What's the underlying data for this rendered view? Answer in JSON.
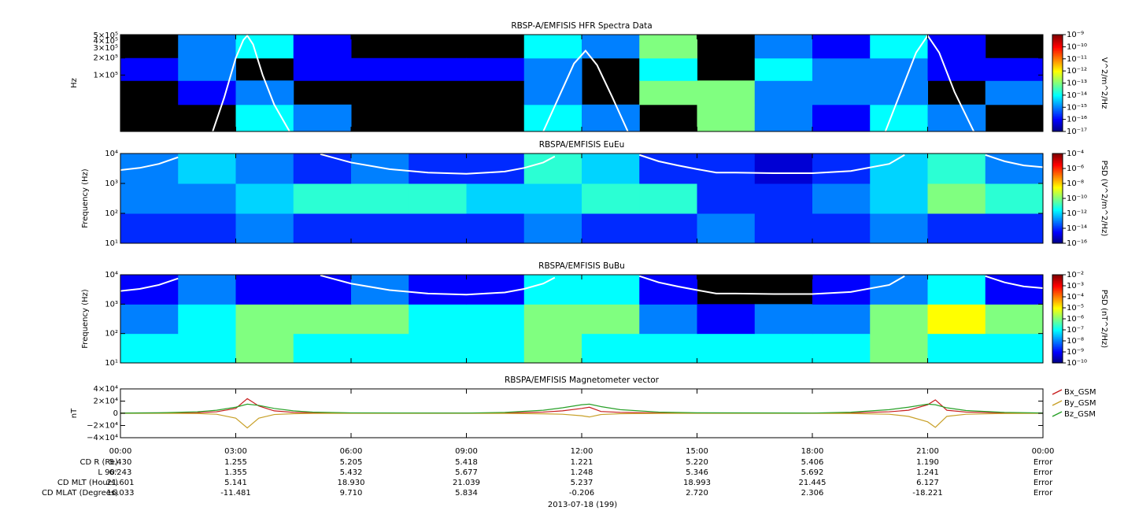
{
  "chart_data": [
    {
      "type": "spectrogram",
      "title": "RBSP-A/EMFISIS  HFR Spectra Data",
      "ylabel": "Hz",
      "ylog": true,
      "xlim": [
        0,
        24
      ],
      "xticks": [
        {
          "value": 0,
          "label": "00:00"
        },
        {
          "value": 3,
          "label": "03:00"
        },
        {
          "value": 6,
          "label": "06:00"
        },
        {
          "value": 9,
          "label": "09:00"
        },
        {
          "value": 12,
          "label": "12:00"
        },
        {
          "value": 15,
          "label": "15:00"
        },
        {
          "value": 18,
          "label": "18:00"
        },
        {
          "value": 21,
          "label": "21:00"
        },
        {
          "value": 24,
          "label": "00:00"
        }
      ],
      "ylim": [
        10000,
        520000
      ],
      "yticks": [
        {
          "value": 100000,
          "label": "1×10⁵"
        },
        {
          "value": 200000,
          "label": "2×10⁵"
        },
        {
          "value": 300000,
          "label": "3×10⁵"
        },
        {
          "value": 400000,
          "label": "4×10⁵"
        },
        {
          "value": 500000,
          "label": "5×10⁵"
        }
      ],
      "xbins": [
        0,
        1.5,
        3,
        4.5,
        6,
        7.5,
        9,
        10.5,
        12,
        13.5,
        15,
        16.5,
        18,
        19.5,
        21,
        22.5,
        24
      ],
      "ybins": [
        10000,
        30000,
        80000,
        200000,
        520000
      ],
      "z": [
        [
          null,
          null,
          1e-14,
          1e-15,
          null,
          null,
          null,
          1e-14,
          1e-15,
          null,
          1e-13,
          1e-15,
          1e-16,
          1e-14,
          1e-15,
          null
        ],
        [
          null,
          1e-16,
          1e-15,
          null,
          null,
          null,
          null,
          1e-15,
          null,
          1e-13,
          1e-13,
          1e-15,
          1e-15,
          1e-15,
          null,
          1e-15
        ],
        [
          1e-16,
          1e-15,
          null,
          1e-16,
          1e-16,
          1e-16,
          1e-16,
          1e-15,
          null,
          1e-14,
          null,
          1e-14,
          1e-15,
          1e-15,
          1e-16,
          1e-16
        ],
        [
          null,
          1e-15,
          1e-14,
          1e-16,
          null,
          null,
          null,
          1e-14,
          1e-15,
          1e-13,
          null,
          1e-15,
          1e-16,
          1e-14,
          1e-16,
          null
        ]
      ],
      "zlabel": "V^2/m^2/Hz",
      "zlim": [
        1e-17,
        1e-09
      ],
      "zticks": [
        {
          "value": 1e-09,
          "label": "10⁻⁹"
        },
        {
          "value": 1e-10,
          "label": "10⁻¹⁰"
        },
        {
          "value": 1e-11,
          "label": "10⁻¹¹"
        },
        {
          "value": 1e-12,
          "label": "10⁻¹²"
        },
        {
          "value": 1e-13,
          "label": "10⁻¹³"
        },
        {
          "value": 1e-14,
          "label": "10⁻¹⁴"
        },
        {
          "value": 1e-15,
          "label": "10⁻¹⁵"
        },
        {
          "value": 1e-16,
          "label": "10⁻¹⁶"
        },
        {
          "value": 1e-17,
          "label": "10⁻¹⁷"
        }
      ],
      "trace": {
        "color": "#ffffff",
        "x": [
          2.4,
          2.7,
          3.0,
          3.2,
          3.3,
          3.45,
          3.7,
          4.0,
          4.4,
          8,
          11.0,
          11.4,
          11.8,
          12.1,
          12.4,
          12.8,
          13.2,
          16,
          19.9,
          20.3,
          20.7,
          21.0,
          21.3,
          21.7,
          22.2
        ],
        "values": [
          10000,
          40000,
          200000,
          420000,
          500000,
          350000,
          100000,
          30000,
          10000,
          null,
          10000,
          40000,
          160000,
          270000,
          150000,
          40000,
          10000,
          null,
          10000,
          50000,
          250000,
          500000,
          250000,
          50000,
          10000
        ]
      }
    },
    {
      "type": "spectrogram",
      "title": "RBSPA/EMFISIS  EuEu",
      "ylabel": "Frequency (Hz)",
      "ylog": true,
      "xlim": [
        0,
        24
      ],
      "xticks": [
        {
          "value": 0,
          "label": "00:00"
        },
        {
          "value": 3,
          "label": "03:00"
        },
        {
          "value": 6,
          "label": "06:00"
        },
        {
          "value": 9,
          "label": "09:00"
        },
        {
          "value": 12,
          "label": "12:00"
        },
        {
          "value": 15,
          "label": "15:00"
        },
        {
          "value": 18,
          "label": "18:00"
        },
        {
          "value": 21,
          "label": "21:00"
        },
        {
          "value": 24,
          "label": "00:00"
        }
      ],
      "ylim": [
        10,
        10000
      ],
      "yticks": [
        {
          "value": 10,
          "label": "10¹"
        },
        {
          "value": 100,
          "label": "10²"
        },
        {
          "value": 1000,
          "label": "10³"
        },
        {
          "value": 10000,
          "label": "10⁴"
        }
      ],
      "xbins": [
        0,
        1.5,
        3,
        4.5,
        6,
        7.5,
        9,
        10.5,
        12,
        13.5,
        15,
        16.5,
        18,
        19.5,
        21,
        22.5,
        24
      ],
      "ybins": [
        10,
        100,
        1000,
        10000
      ],
      "z": [
        [
          1e-14,
          1e-14,
          1e-13,
          1e-14,
          1e-14,
          1e-14,
          1e-14,
          1e-13,
          1e-14,
          1e-14,
          1e-13,
          1e-14,
          1e-14,
          1e-13,
          1e-14,
          1e-14
        ],
        [
          1e-13,
          1e-13,
          1e-12,
          1e-11,
          1e-11,
          1e-11,
          1e-12,
          1e-12,
          1e-11,
          1e-11,
          1e-14,
          1e-14,
          1e-13,
          1e-12,
          1e-10,
          1e-11
        ],
        [
          1e-13,
          1e-12,
          1e-13,
          1e-14,
          1e-13,
          1e-14,
          1e-14,
          1e-11,
          1e-12,
          1e-14,
          1e-14,
          1e-15,
          1e-14,
          1e-12,
          1e-11,
          1e-13
        ]
      ],
      "zlabel": "PSD (V^2/m^2/Hz)",
      "zlim": [
        1e-16,
        0.0001
      ],
      "zticks": [
        {
          "value": 0.0001,
          "label": "10⁻⁴"
        },
        {
          "value": 1e-06,
          "label": "10⁻⁶"
        },
        {
          "value": 1e-08,
          "label": "10⁻⁸"
        },
        {
          "value": 1e-10,
          "label": "10⁻¹⁰"
        },
        {
          "value": 1e-12,
          "label": "10⁻¹²"
        },
        {
          "value": 1e-14,
          "label": "10⁻¹⁴"
        },
        {
          "value": 1e-16,
          "label": "10⁻¹⁶"
        }
      ],
      "trace": {
        "color": "#ffffff",
        "x": [
          0,
          0.5,
          1,
          1.5,
          2,
          5.2,
          6,
          7,
          8,
          9,
          10,
          10.5,
          11,
          11.3,
          12,
          13.5,
          14,
          14.5,
          15,
          15.5,
          16,
          17,
          18,
          19,
          20,
          20.4,
          21,
          22.5,
          23,
          23.5,
          24
        ],
        "values": [
          2800,
          3300,
          4500,
          7500,
          null,
          9500,
          5000,
          3000,
          2300,
          2100,
          2500,
          3300,
          5000,
          8000,
          null,
          9000,
          5500,
          4000,
          3000,
          2300,
          2300,
          2200,
          2200,
          2600,
          4500,
          9000,
          null,
          9000,
          5500,
          4000,
          3500
        ]
      }
    },
    {
      "type": "spectrogram",
      "title": "RBSPA/EMFISIS  BuBu",
      "ylabel": "Frequency (Hz)",
      "ylog": true,
      "xlim": [
        0,
        24
      ],
      "xticks": [
        {
          "value": 0,
          "label": "00:00"
        },
        {
          "value": 3,
          "label": "03:00"
        },
        {
          "value": 6,
          "label": "06:00"
        },
        {
          "value": 9,
          "label": "09:00"
        },
        {
          "value": 12,
          "label": "12:00"
        },
        {
          "value": 15,
          "label": "15:00"
        },
        {
          "value": 18,
          "label": "18:00"
        },
        {
          "value": 21,
          "label": "21:00"
        },
        {
          "value": 24,
          "label": "00:00"
        }
      ],
      "ylim": [
        10,
        10000
      ],
      "yticks": [
        {
          "value": 10,
          "label": "10¹"
        },
        {
          "value": 100,
          "label": "10²"
        },
        {
          "value": 1000,
          "label": "10³"
        },
        {
          "value": 10000,
          "label": "10⁴"
        }
      ],
      "xbins": [
        0,
        1.5,
        3,
        4.5,
        6,
        7.5,
        9,
        10.5,
        12,
        13.5,
        15,
        16.5,
        18,
        19.5,
        21,
        22.5,
        24
      ],
      "ybins": [
        10,
        100,
        1000,
        10000
      ],
      "z": [
        [
          1e-07,
          1e-07,
          1e-06,
          1e-07,
          1e-07,
          1e-07,
          1e-07,
          1e-06,
          1e-07,
          1e-07,
          1e-07,
          1e-07,
          1e-07,
          1e-06,
          1e-07,
          1e-07
        ],
        [
          1e-08,
          1e-07,
          1e-06,
          1e-06,
          1e-06,
          1e-07,
          1e-07,
          1e-06,
          1e-06,
          1e-08,
          1e-09,
          1e-08,
          1e-08,
          1e-06,
          1e-05,
          1e-06
        ],
        [
          1e-09,
          1e-08,
          1e-09,
          1e-09,
          1e-08,
          1e-09,
          1e-09,
          1e-07,
          1e-07,
          1e-09,
          null,
          null,
          1e-09,
          1e-08,
          1e-07,
          1e-09
        ]
      ],
      "zlabel": "PSD (nT^2/Hz)",
      "zlim": [
        1e-10,
        0.01
      ],
      "zticks": [
        {
          "value": 0.01,
          "label": "10⁻²"
        },
        {
          "value": 0.001,
          "label": "10⁻³"
        },
        {
          "value": 0.0001,
          "label": "10⁻⁴"
        },
        {
          "value": 1e-05,
          "label": "10⁻⁵"
        },
        {
          "value": 1e-06,
          "label": "10⁻⁶"
        },
        {
          "value": 1e-07,
          "label": "10⁻⁷"
        },
        {
          "value": 1e-08,
          "label": "10⁻⁸"
        },
        {
          "value": 1e-09,
          "label": "10⁻⁹"
        },
        {
          "value": 1e-10,
          "label": "10⁻¹⁰"
        }
      ],
      "trace": {
        "color": "#ffffff",
        "x": [
          0,
          0.5,
          1,
          1.5,
          2,
          5.2,
          6,
          7,
          8,
          9,
          10,
          10.5,
          11,
          11.3,
          12,
          13.5,
          14,
          14.5,
          15,
          15.5,
          16,
          17,
          18,
          19,
          20,
          20.4,
          21,
          22.5,
          23,
          23.5,
          24
        ],
        "values": [
          2800,
          3300,
          4500,
          7500,
          null,
          9500,
          5000,
          3000,
          2300,
          2100,
          2500,
          3300,
          5000,
          8000,
          null,
          9000,
          5500,
          4000,
          3000,
          2300,
          2300,
          2200,
          2200,
          2600,
          4500,
          9000,
          null,
          9000,
          5500,
          4000,
          3500
        ]
      }
    },
    {
      "type": "line",
      "title": "RBSPA/EMFISIS  Magnetometer vector",
      "ylabel": "nT",
      "xlim": [
        0,
        24
      ],
      "xticks": [
        {
          "value": 0,
          "label": "00:00"
        },
        {
          "value": 3,
          "label": "03:00"
        },
        {
          "value": 6,
          "label": "06:00"
        },
        {
          "value": 9,
          "label": "09:00"
        },
        {
          "value": 12,
          "label": "12:00"
        },
        {
          "value": 15,
          "label": "15:00"
        },
        {
          "value": 18,
          "label": "18:00"
        },
        {
          "value": 21,
          "label": "21:00"
        },
        {
          "value": 24,
          "label": "00:00"
        }
      ],
      "ylim": [
        -40000,
        40000
      ],
      "yticks": [
        {
          "value": -40000,
          "label": "−4×10⁴"
        },
        {
          "value": -20000,
          "label": "−2×10⁴"
        },
        0,
        {
          "value": 20000,
          "label": "2×10⁴"
        },
        {
          "value": 40000,
          "label": "4×10⁴"
        }
      ],
      "x": [
        0,
        1,
        2,
        2.5,
        3,
        3.3,
        3.6,
        4,
        4.5,
        5,
        6,
        9,
        10,
        11,
        11.5,
        12,
        12.2,
        12.5,
        13,
        14,
        15,
        18,
        19,
        20,
        20.5,
        21,
        21.2,
        21.5,
        22,
        23,
        24
      ],
      "series": [
        {
          "name": "Bx_GSM",
          "color": "#c81e1e",
          "values": [
            500,
            600,
            1000,
            2500,
            8000,
            24000,
            12000,
            4000,
            1500,
            800,
            500,
            300,
            600,
            2000,
            4000,
            8000,
            10000,
            3000,
            1500,
            600,
            400,
            300,
            700,
            2500,
            5000,
            14000,
            22000,
            5000,
            2000,
            700,
            400
          ]
        },
        {
          "name": "By_GSM",
          "color": "#c8a028",
          "values": [
            0,
            0,
            -300,
            -1500,
            -8000,
            -24000,
            -8000,
            -2000,
            -600,
            -200,
            0,
            0,
            -200,
            -800,
            -1500,
            -4000,
            -6000,
            -2000,
            -600,
            -200,
            0,
            0,
            -300,
            -1500,
            -5000,
            -14000,
            -23000,
            -5000,
            -1500,
            -300,
            0
          ]
        },
        {
          "name": "Bz_GSM",
          "color": "#28a028",
          "values": [
            300,
            800,
            2500,
            5000,
            10000,
            15000,
            13000,
            8000,
            4000,
            2000,
            700,
            400,
            1500,
            5000,
            9000,
            14000,
            15000,
            11000,
            6000,
            2000,
            800,
            400,
            1800,
            6000,
            10000,
            15000,
            14000,
            9000,
            4500,
            1500,
            500
          ]
        }
      ]
    }
  ],
  "ephemeris": {
    "labels": [
      "CD R (Re)",
      "L 90ᵒ",
      "CD MLT (Hours)",
      "CD MLAT (Degrees)"
    ],
    "rows": [
      [
        "5.430",
        "1.255",
        "5.205",
        "5.418",
        "1.221",
        "5.220",
        "5.406",
        "1.190",
        "Error"
      ],
      [
        "6.243",
        "1.355",
        "5.432",
        "5.677",
        "1.248",
        "5.346",
        "5.692",
        "1.241",
        "Error"
      ],
      [
        "21.601",
        "5.141",
        "18.930",
        "21.039",
        "5.237",
        "18.993",
        "21.445",
        "6.127",
        "Error"
      ],
      [
        "16.033",
        "-11.481",
        "9.710",
        "5.834",
        "-0.206",
        "2.720",
        "2.306",
        "-18.221",
        "Error"
      ]
    ]
  },
  "date": "2013-07-18 (199)"
}
